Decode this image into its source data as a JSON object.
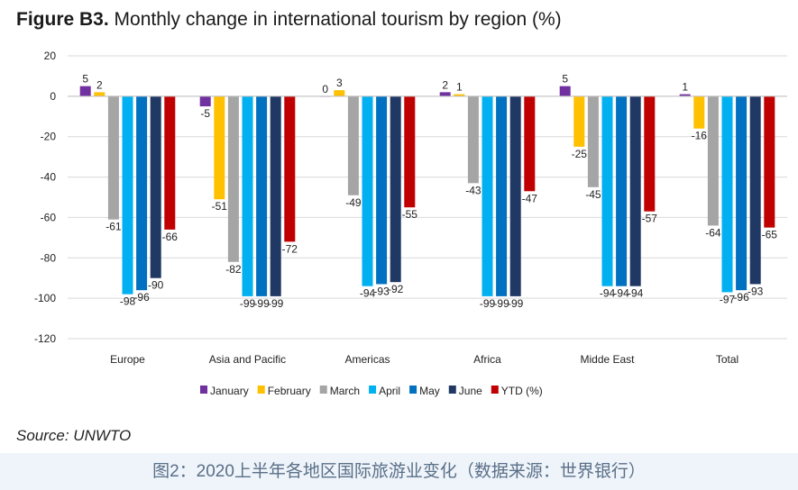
{
  "title": {
    "prefix": "Figure B3.",
    "text": "Monthly change in international tourism by region (%)"
  },
  "source": "Source: UNWTO",
  "caption": "图2：2020上半年各地区国际旅游业变化（数据来源：世界银行）",
  "chart_data": {
    "type": "bar",
    "categories": [
      "Europe",
      "Asia and Pacific",
      "Americas",
      "Africa",
      "Midde East",
      "Total"
    ],
    "series": [
      {
        "name": "January",
        "color": "#7030a0",
        "values": [
          5,
          -5,
          0,
          2,
          5,
          1
        ]
      },
      {
        "name": "February",
        "color": "#ffc000",
        "values": [
          2,
          -51,
          3,
          1,
          -25,
          -16
        ]
      },
      {
        "name": "March",
        "color": "#a5a5a5",
        "values": [
          -61,
          -82,
          -49,
          -43,
          -45,
          -64
        ]
      },
      {
        "name": "April",
        "color": "#00b0f0",
        "values": [
          -98,
          -99,
          -94,
          -99,
          -94,
          -97
        ]
      },
      {
        "name": "May",
        "color": "#0070c0",
        "values": [
          -96,
          -99,
          -93,
          -99,
          -94,
          -96
        ]
      },
      {
        "name": "June",
        "color": "#203864",
        "values": [
          -90,
          -99,
          -92,
          -99,
          -94,
          -93
        ]
      },
      {
        "name": "YTD (%)",
        "color": "#c00000",
        "values": [
          -66,
          -72,
          -55,
          -47,
          -57,
          -65
        ]
      }
    ],
    "ylim": [
      -120,
      20
    ],
    "yticks": [
      20,
      0,
      -20,
      -40,
      -60,
      -80,
      -100,
      -120
    ],
    "xlabel": "",
    "ylabel": "",
    "legend": "bottom"
  }
}
